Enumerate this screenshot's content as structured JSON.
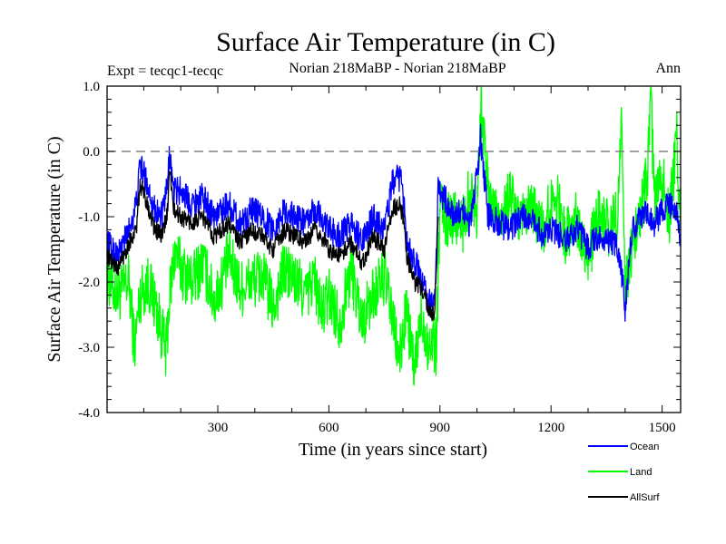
{
  "chart_data": {
    "type": "line",
    "title": "Surface Air Temperature (in C)",
    "subtitle_left": "Expt = tecqc1-tecqc",
    "subtitle_center": "Norian 218MaBP - Norian 218MaBP",
    "subtitle_right": "Ann",
    "xlabel": "Time (in years since start)",
    "ylabel": "Surface Air Temperature (in C)",
    "xlim": [
      1,
      1550
    ],
    "ylim": [
      -4.0,
      1.0
    ],
    "x_ticks": [
      300,
      600,
      900,
      1200,
      1500
    ],
    "x_tick_labels": [
      "300",
      "600",
      "900",
      "1200",
      "1500"
    ],
    "y_ticks": [
      -4.0,
      -3.0,
      -2.0,
      -1.0,
      0.0,
      1.0
    ],
    "y_tick_labels": [
      "-4.0",
      "-3.0",
      "-2.0",
      "-1.0",
      "0.0",
      "1.0"
    ],
    "reference_line": {
      "y": 0.0,
      "style": "dashed",
      "color": "#808080"
    },
    "series": [
      {
        "name": "Land",
        "color": "#00ff00",
        "x": [
          1,
          30,
          60,
          75,
          90,
          110,
          130,
          150,
          160,
          170,
          185,
          200,
          230,
          260,
          290,
          310,
          330,
          360,
          390,
          420,
          450,
          480,
          510,
          540,
          560,
          580,
          600,
          630,
          660,
          690,
          720,
          750,
          770,
          790,
          810,
          830,
          850,
          870,
          880,
          890,
          895,
          900,
          920,
          940,
          960,
          980,
          1000,
          1010,
          1030,
          1060,
          1090,
          1120,
          1150,
          1180,
          1210,
          1240,
          1270,
          1300,
          1330,
          1360,
          1380,
          1390,
          1400,
          1420,
          1440,
          1460,
          1470,
          1480,
          1500,
          1520,
          1540,
          1550
        ],
        "values": [
          -1.9,
          -2.2,
          -2.0,
          -3.0,
          -2.2,
          -2.0,
          -2.3,
          -2.8,
          -3.1,
          -2.2,
          -1.5,
          -1.8,
          -2.0,
          -1.7,
          -2.3,
          -2.0,
          -1.6,
          -2.1,
          -2.0,
          -1.9,
          -2.4,
          -1.8,
          -2.0,
          -2.2,
          -1.9,
          -2.5,
          -2.2,
          -2.6,
          -1.8,
          -2.6,
          -2.2,
          -1.9,
          -2.5,
          -3.2,
          -2.4,
          -3.4,
          -2.5,
          -3.0,
          -2.9,
          -3.0,
          -2.0,
          -0.8,
          -1.1,
          -0.9,
          -1.2,
          -0.6,
          -0.9,
          0.8,
          -0.6,
          -1.0,
          -0.7,
          -1.1,
          -0.9,
          -1.2,
          -0.6,
          -1.3,
          -1.0,
          -1.6,
          -1.0,
          -1.2,
          -0.9,
          0.4,
          -2.2,
          -1.4,
          -1.0,
          -0.4,
          0.7,
          -0.8,
          -0.4,
          -1.0,
          0.2,
          -1.2
        ]
      },
      {
        "name": "Ocean",
        "color": "#0000ff",
        "x": [
          1,
          30,
          60,
          80,
          90,
          110,
          130,
          150,
          165,
          170,
          180,
          200,
          230,
          260,
          290,
          310,
          330,
          360,
          390,
          420,
          450,
          480,
          510,
          540,
          560,
          580,
          600,
          630,
          660,
          690,
          720,
          750,
          770,
          790,
          800,
          810,
          830,
          850,
          870,
          885,
          890,
          895,
          900,
          920,
          940,
          960,
          980,
          1000,
          1010,
          1030,
          1060,
          1090,
          1120,
          1150,
          1180,
          1210,
          1240,
          1270,
          1300,
          1330,
          1360,
          1380,
          1395,
          1400,
          1410,
          1420,
          1440,
          1460,
          1480,
          1500,
          1520,
          1540,
          1550
        ],
        "values": [
          -1.4,
          -1.6,
          -1.2,
          -0.8,
          -0.2,
          -0.5,
          -0.9,
          -1.0,
          -0.5,
          0.0,
          -0.6,
          -0.6,
          -0.8,
          -0.7,
          -1.0,
          -0.9,
          -0.8,
          -1.1,
          -0.9,
          -1.0,
          -1.2,
          -0.9,
          -1.0,
          -1.1,
          -0.9,
          -1.0,
          -1.2,
          -1.3,
          -1.1,
          -1.4,
          -1.0,
          -1.2,
          -0.5,
          -0.4,
          -0.6,
          -1.3,
          -1.7,
          -1.9,
          -2.3,
          -2.4,
          -1.7,
          -0.6,
          -0.6,
          -0.8,
          -1.0,
          -0.9,
          -1.1,
          -0.4,
          0.2,
          -1.0,
          -1.1,
          -1.2,
          -1.0,
          -1.1,
          -1.3,
          -1.2,
          -1.4,
          -1.2,
          -1.5,
          -1.3,
          -1.4,
          -1.5,
          -2.0,
          -2.4,
          -1.7,
          -1.2,
          -1.0,
          -0.9,
          -1.1,
          -0.9,
          -0.8,
          -1.0,
          -1.4
        ]
      },
      {
        "name": "AllSurf",
        "color": "#000000",
        "x": [
          1,
          30,
          60,
          80,
          90,
          110,
          130,
          150,
          165,
          170,
          180,
          200,
          230,
          260,
          290,
          310,
          330,
          360,
          390,
          420,
          450,
          480,
          510,
          540,
          560,
          580,
          600,
          630,
          660,
          690,
          720,
          750,
          770,
          790,
          800,
          810,
          830,
          850,
          870,
          885,
          890,
          895
        ],
        "values": [
          -1.6,
          -1.8,
          -1.4,
          -1.2,
          -0.5,
          -0.8,
          -1.2,
          -1.3,
          -0.9,
          -0.2,
          -0.9,
          -1.0,
          -1.1,
          -1.0,
          -1.3,
          -1.2,
          -1.1,
          -1.4,
          -1.2,
          -1.3,
          -1.5,
          -1.2,
          -1.3,
          -1.4,
          -1.2,
          -1.3,
          -1.5,
          -1.6,
          -1.4,
          -1.7,
          -1.3,
          -1.5,
          -0.9,
          -0.8,
          -1.0,
          -1.6,
          -2.0,
          -2.1,
          -2.4,
          -2.5,
          -1.9,
          -1.0
        ]
      }
    ],
    "legend": {
      "position": "bottom-right",
      "entries": [
        "Ocean",
        "Land",
        "AllSurf"
      ]
    }
  }
}
